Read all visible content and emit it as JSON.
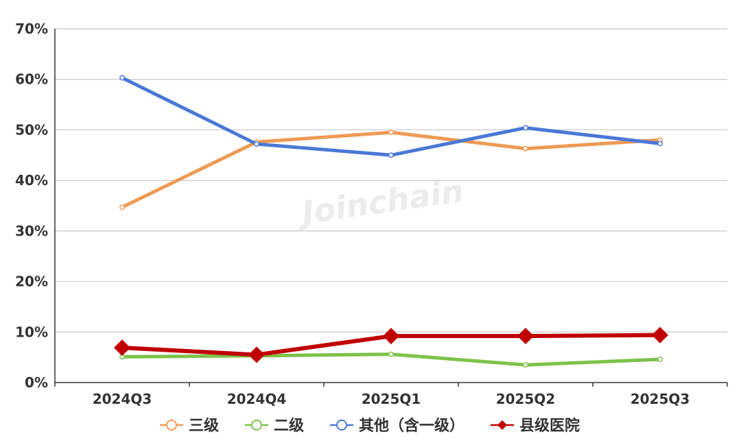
{
  "watermark": "Joinchain",
  "chart_data": {
    "type": "line",
    "categories": [
      "2024Q3",
      "2024Q4",
      "2025Q1",
      "2025Q2",
      "2025Q3"
    ],
    "y_ticks": [
      "0%",
      "10%",
      "20%",
      "30%",
      "40%",
      "50%",
      "60%",
      "70%"
    ],
    "ylim": [
      0,
      70
    ],
    "grid": true,
    "legend_position": "bottom-center",
    "series": [
      {
        "name": "三级",
        "values": [
          34.7,
          47.6,
          49.5,
          46.3,
          48.0
        ],
        "color": "#ee9a55",
        "marker": "circle"
      },
      {
        "name": "二级",
        "values": [
          5.1,
          5.3,
          5.6,
          3.5,
          4.6
        ],
        "color": "#7ec24a",
        "marker": "circle"
      },
      {
        "name": "其他（含一级）",
        "values": [
          60.3,
          47.2,
          45.0,
          50.4,
          47.3
        ],
        "color": "#4a78d6",
        "marker": "circle"
      },
      {
        "name": "县级医院",
        "values": [
          6.9,
          5.5,
          9.2,
          9.2,
          9.4
        ],
        "color": "#c00000",
        "marker": "diamond"
      }
    ]
  }
}
